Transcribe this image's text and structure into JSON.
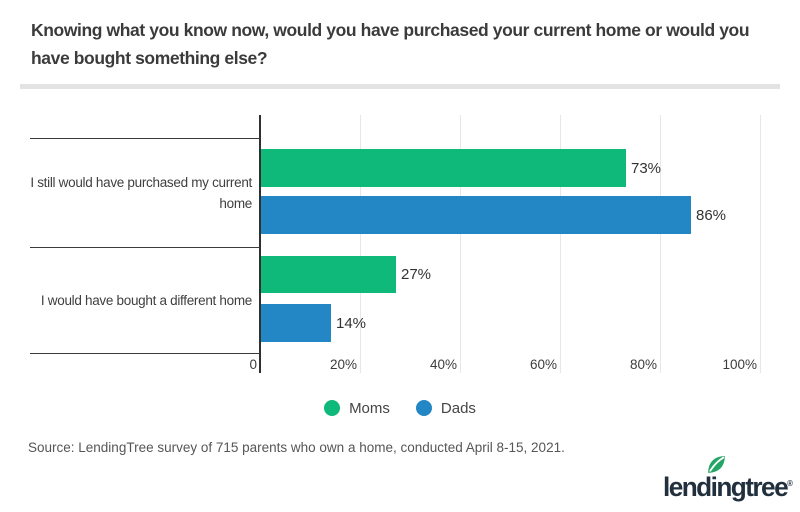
{
  "header": {
    "title_line1": "Knowing what you know now, would you have purchased your current home or would you",
    "title_line2": "have bought something else?"
  },
  "chart_data": {
    "type": "bar",
    "orientation": "horizontal",
    "title": "Knowing what you know now, would you have purchased your current home or would you have bought something else?",
    "categories": [
      "I still would have purchased my current home",
      "I would have bought a different home"
    ],
    "categories_lines": [
      [
        "I still would have purchased my current",
        "home"
      ],
      [
        "I would have bought a different home"
      ]
    ],
    "series": [
      {
        "name": "Moms",
        "color": "#0fb97a",
        "values": [
          73,
          27
        ],
        "labels": [
          "73%",
          "27%"
        ]
      },
      {
        "name": "Dads",
        "color": "#2386c5",
        "values": [
          86,
          14
        ],
        "labels": [
          "86%",
          "14%"
        ]
      }
    ],
    "xlim": [
      0,
      100
    ],
    "ticks": [
      "0",
      "20%",
      "40%",
      "60%",
      "80%",
      "100%"
    ],
    "grid": "vertical",
    "legend_position": "bottom"
  },
  "footer": {
    "source": "Source: LendingTree survey of 715 parents who own a home, conducted April 8-15, 2021.",
    "logo_text": "lendingtree",
    "logo_mark": "®"
  },
  "colors": {
    "moms_green": "#0fb97a",
    "dads_blue": "#2386c5",
    "leaf_green": "#23a566",
    "logo_navy": "#22303e"
  }
}
